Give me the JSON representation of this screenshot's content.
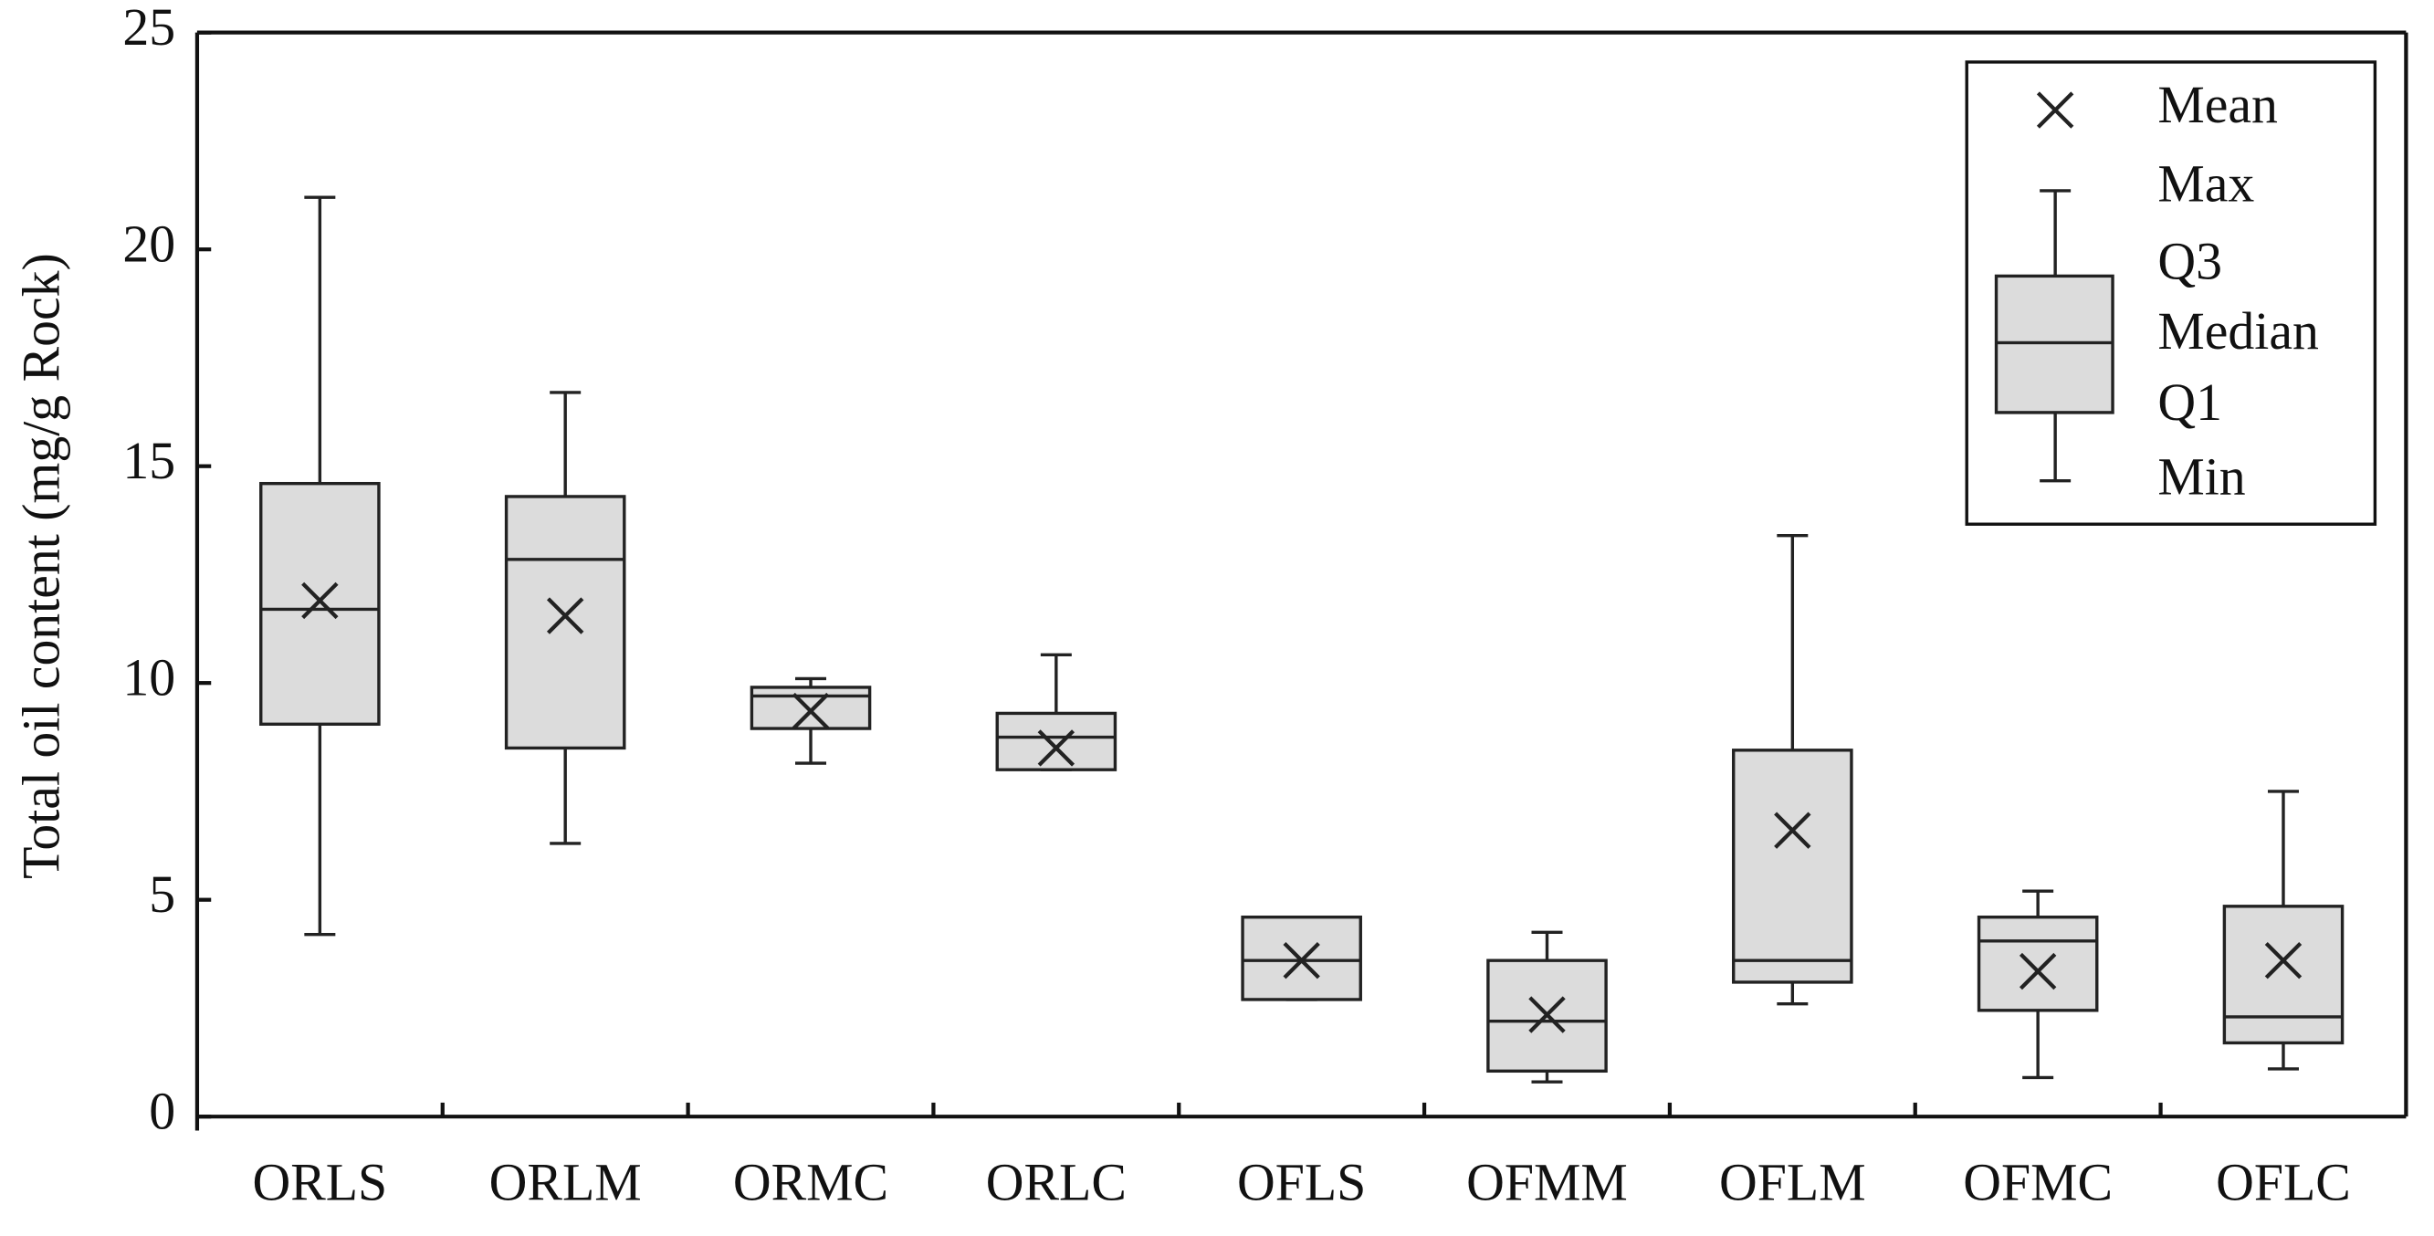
{
  "chart_data": {
    "type": "box",
    "y_label": "Total oil content (mg/g Rock)",
    "categories": [
      "ORLS",
      "ORLM",
      "ORMC",
      "ORLC",
      "OFLS",
      "OFMM",
      "OFLM",
      "OFMC",
      "OFLC"
    ],
    "max": [
      21.2,
      16.7,
      10.1,
      10.65,
      4.6,
      4.25,
      13.4,
      5.2,
      7.5
    ],
    "q3": [
      14.6,
      14.3,
      9.9,
      9.3,
      4.6,
      3.6,
      8.45,
      4.6,
      4.85
    ],
    "median": [
      11.7,
      12.85,
      9.7,
      8.75,
      3.6,
      2.2,
      3.6,
      4.05,
      2.3
    ],
    "q1": [
      9.05,
      8.5,
      8.95,
      8.0,
      2.7,
      1.05,
      3.1,
      2.45,
      1.7
    ],
    "min": [
      4.2,
      6.3,
      8.15,
      8.0,
      2.7,
      0.8,
      2.6,
      0.9,
      1.1
    ],
    "mean": [
      11.9,
      11.55,
      9.35,
      8.5,
      3.6,
      2.35,
      6.6,
      3.35,
      3.6
    ],
    "color": "#dcdcdc",
    "ylim": [
      0,
      25
    ],
    "yticks": [
      0,
      5,
      10,
      15,
      20,
      25
    ],
    "legend_position": "upper right",
    "legend": {
      "mean": "Mean",
      "max": "Max",
      "q3": "Q3",
      "median": "Median",
      "q1": "Q1",
      "min": "Min"
    }
  }
}
